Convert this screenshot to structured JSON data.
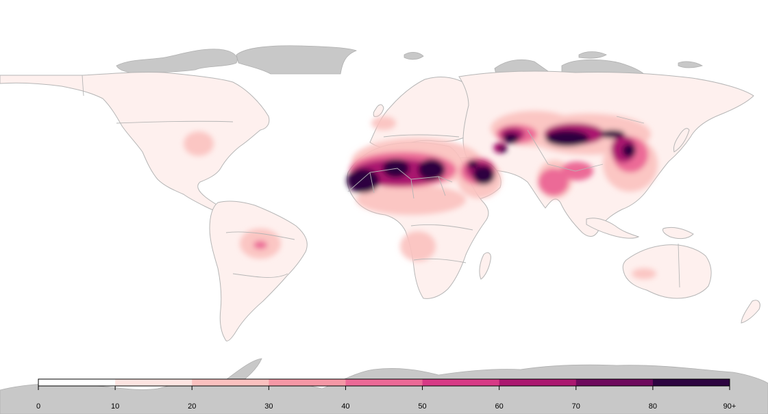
{
  "legend": {
    "tick_labels": [
      "0",
      "10",
      "20",
      "30",
      "40",
      "50",
      "60",
      "70",
      "80",
      "90+"
    ],
    "bin_colors": [
      "#ffffff",
      "#fde4e1",
      "#fbc1bf",
      "#f598a6",
      "#ec6a97",
      "#d73a86",
      "#ab1870",
      "#6e0a5d",
      "#2d0540"
    ]
  },
  "colors": {
    "land_base": "#fef0ee",
    "ice": "#c8c8c8",
    "border": "#b5b5b5",
    "ocean": "#ffffff"
  }
}
